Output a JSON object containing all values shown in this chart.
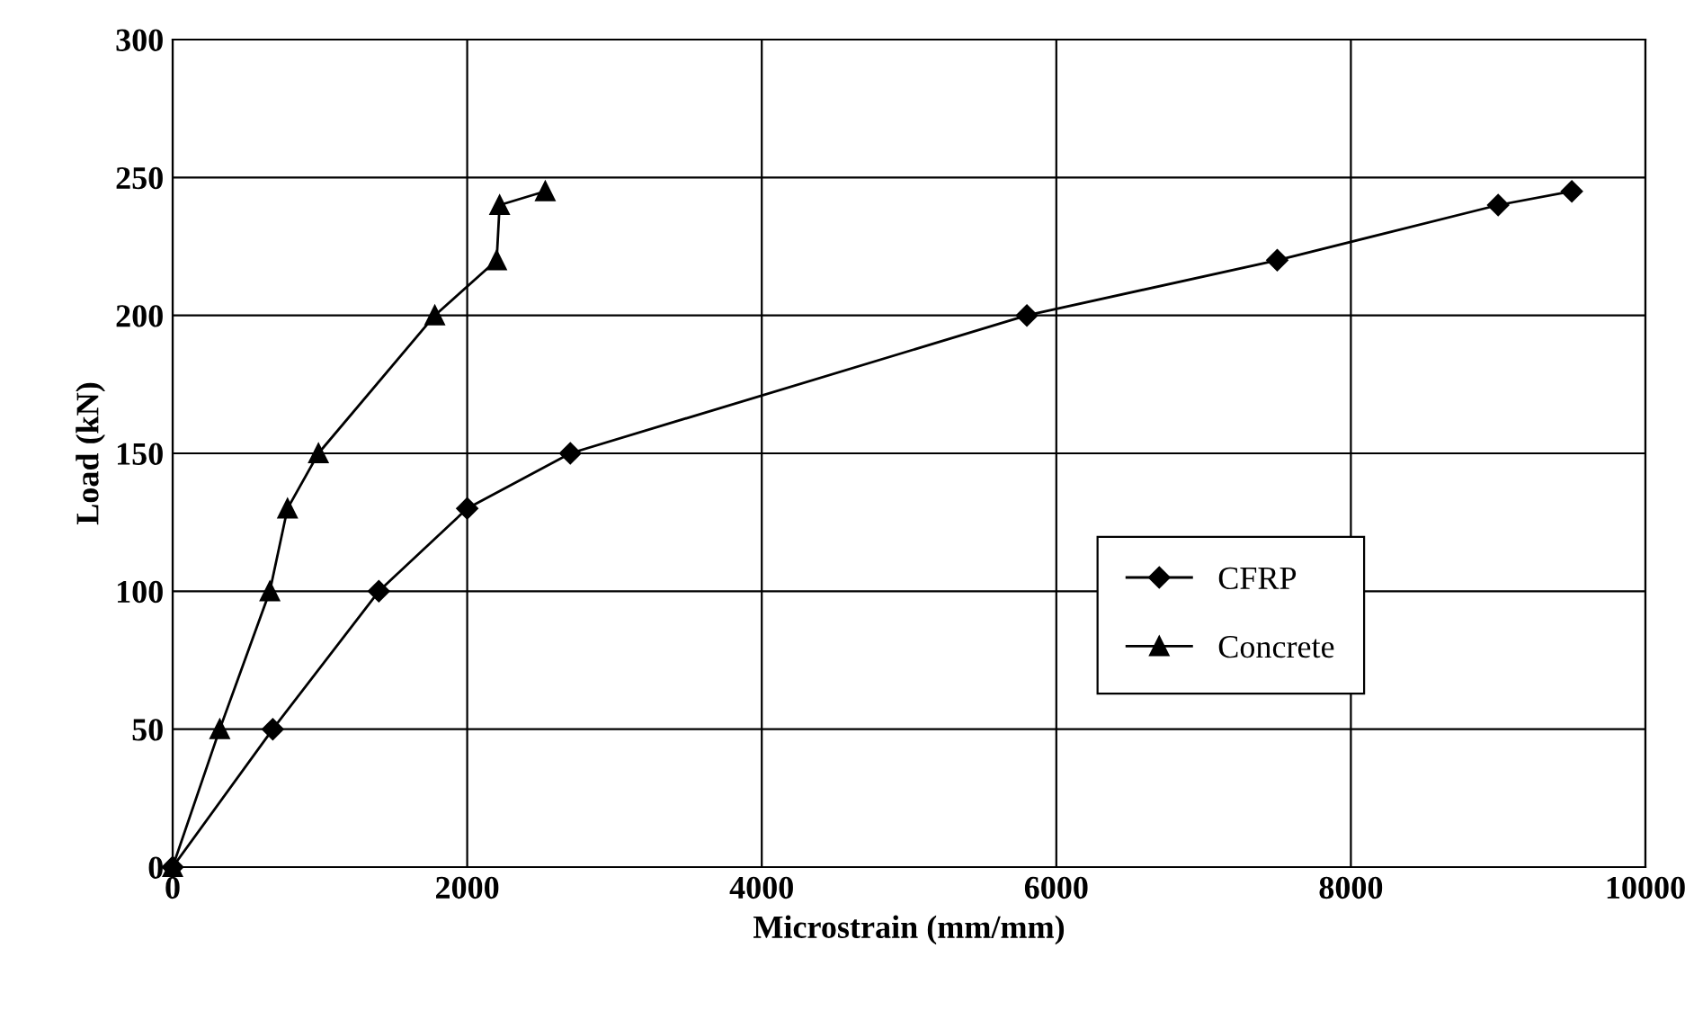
{
  "chart_data": {
    "type": "line",
    "xlabel": "Microstrain (mm/mm)",
    "ylabel": "Load (kN)",
    "xlim": [
      0,
      10000
    ],
    "xticks": [
      0,
      2000,
      4000,
      6000,
      8000,
      10000
    ],
    "ylim": [
      0,
      300
    ],
    "yticks": [
      0,
      50,
      100,
      150,
      200,
      250,
      300
    ],
    "grid": true,
    "legend": "lower right",
    "line_style": "solid",
    "series": [
      {
        "name": "CFRP",
        "color": "#000000",
        "marker": "diamond",
        "x": [
          0,
          680,
          1400,
          2000,
          2700,
          5800,
          7500,
          9000,
          9500
        ],
        "values": [
          0,
          50,
          100,
          130,
          150,
          200,
          220,
          240,
          245
        ]
      },
      {
        "name": "Concrete",
        "color": "#000000",
        "marker": "triangle",
        "x": [
          0,
          320,
          660,
          780,
          990,
          1780,
          2200,
          2220,
          2530
        ],
        "values": [
          0,
          50,
          100,
          130,
          150,
          200,
          220,
          240,
          245
        ]
      }
    ]
  }
}
